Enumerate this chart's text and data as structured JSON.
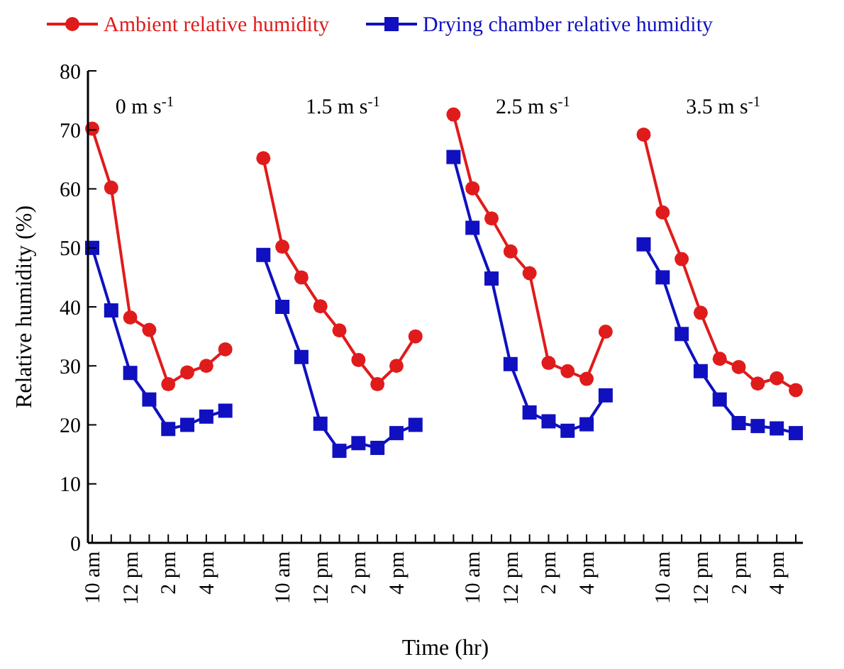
{
  "chart_data": {
    "type": "line",
    "xlabel": "Time (hr)",
    "ylabel": "Relative humidity (%)",
    "categories": [
      "10 am",
      null,
      "12 pm",
      null,
      "2 pm",
      null,
      "4 pm",
      null,
      null,
      null,
      "10 am",
      null,
      "12 pm",
      null,
      "2 pm",
      null,
      "4 pm",
      null,
      null,
      null,
      "10 am",
      null,
      "12 pm",
      null,
      "2 pm",
      null,
      "4 pm",
      null,
      null,
      null,
      "10 am",
      null,
      "12 pm",
      null,
      "2 pm",
      null,
      "4 pm",
      null
    ],
    "series": [
      {
        "name": "Ambient relative humidity",
        "color": "#e01b1b",
        "marker": "circle",
        "values": [
          70.2,
          60.2,
          38.2,
          36.1,
          26.9,
          28.9,
          30.0,
          32.8,
          null,
          65.2,
          50.2,
          45.0,
          40.1,
          36.0,
          31.0,
          26.9,
          30.0,
          35.0,
          null,
          72.6,
          60.1,
          55.0,
          49.4,
          45.7,
          30.5,
          29.1,
          27.8,
          35.8,
          null,
          69.2,
          56.0,
          48.1,
          39.0,
          31.2,
          29.8,
          27.0,
          27.9,
          25.9
        ]
      },
      {
        "name": "Drying chamber relative humidity",
        "color": "#1010c0",
        "marker": "square",
        "values": [
          50.0,
          39.4,
          28.8,
          24.3,
          19.3,
          20.0,
          21.4,
          22.4,
          null,
          48.8,
          40.0,
          31.5,
          20.2,
          15.6,
          16.9,
          16.1,
          18.6,
          20.0,
          null,
          65.4,
          53.4,
          44.8,
          30.3,
          22.1,
          20.6,
          19.0,
          20.1,
          25.0,
          null,
          50.6,
          45.0,
          35.4,
          29.1,
          24.3,
          20.3,
          19.8,
          19.4,
          18.6
        ]
      }
    ],
    "ylim": [
      0,
      80
    ],
    "yticks": [
      0,
      10,
      20,
      30,
      40,
      50,
      60,
      70,
      80
    ],
    "grid": false,
    "legend": "top",
    "line_style": "solid",
    "annotations": [
      "0 m s$^{-1}$",
      "1.5 m s$^{-1}$",
      "2.5 m s$^{-1}$",
      "3.5 m s$^{-1}$"
    ]
  }
}
